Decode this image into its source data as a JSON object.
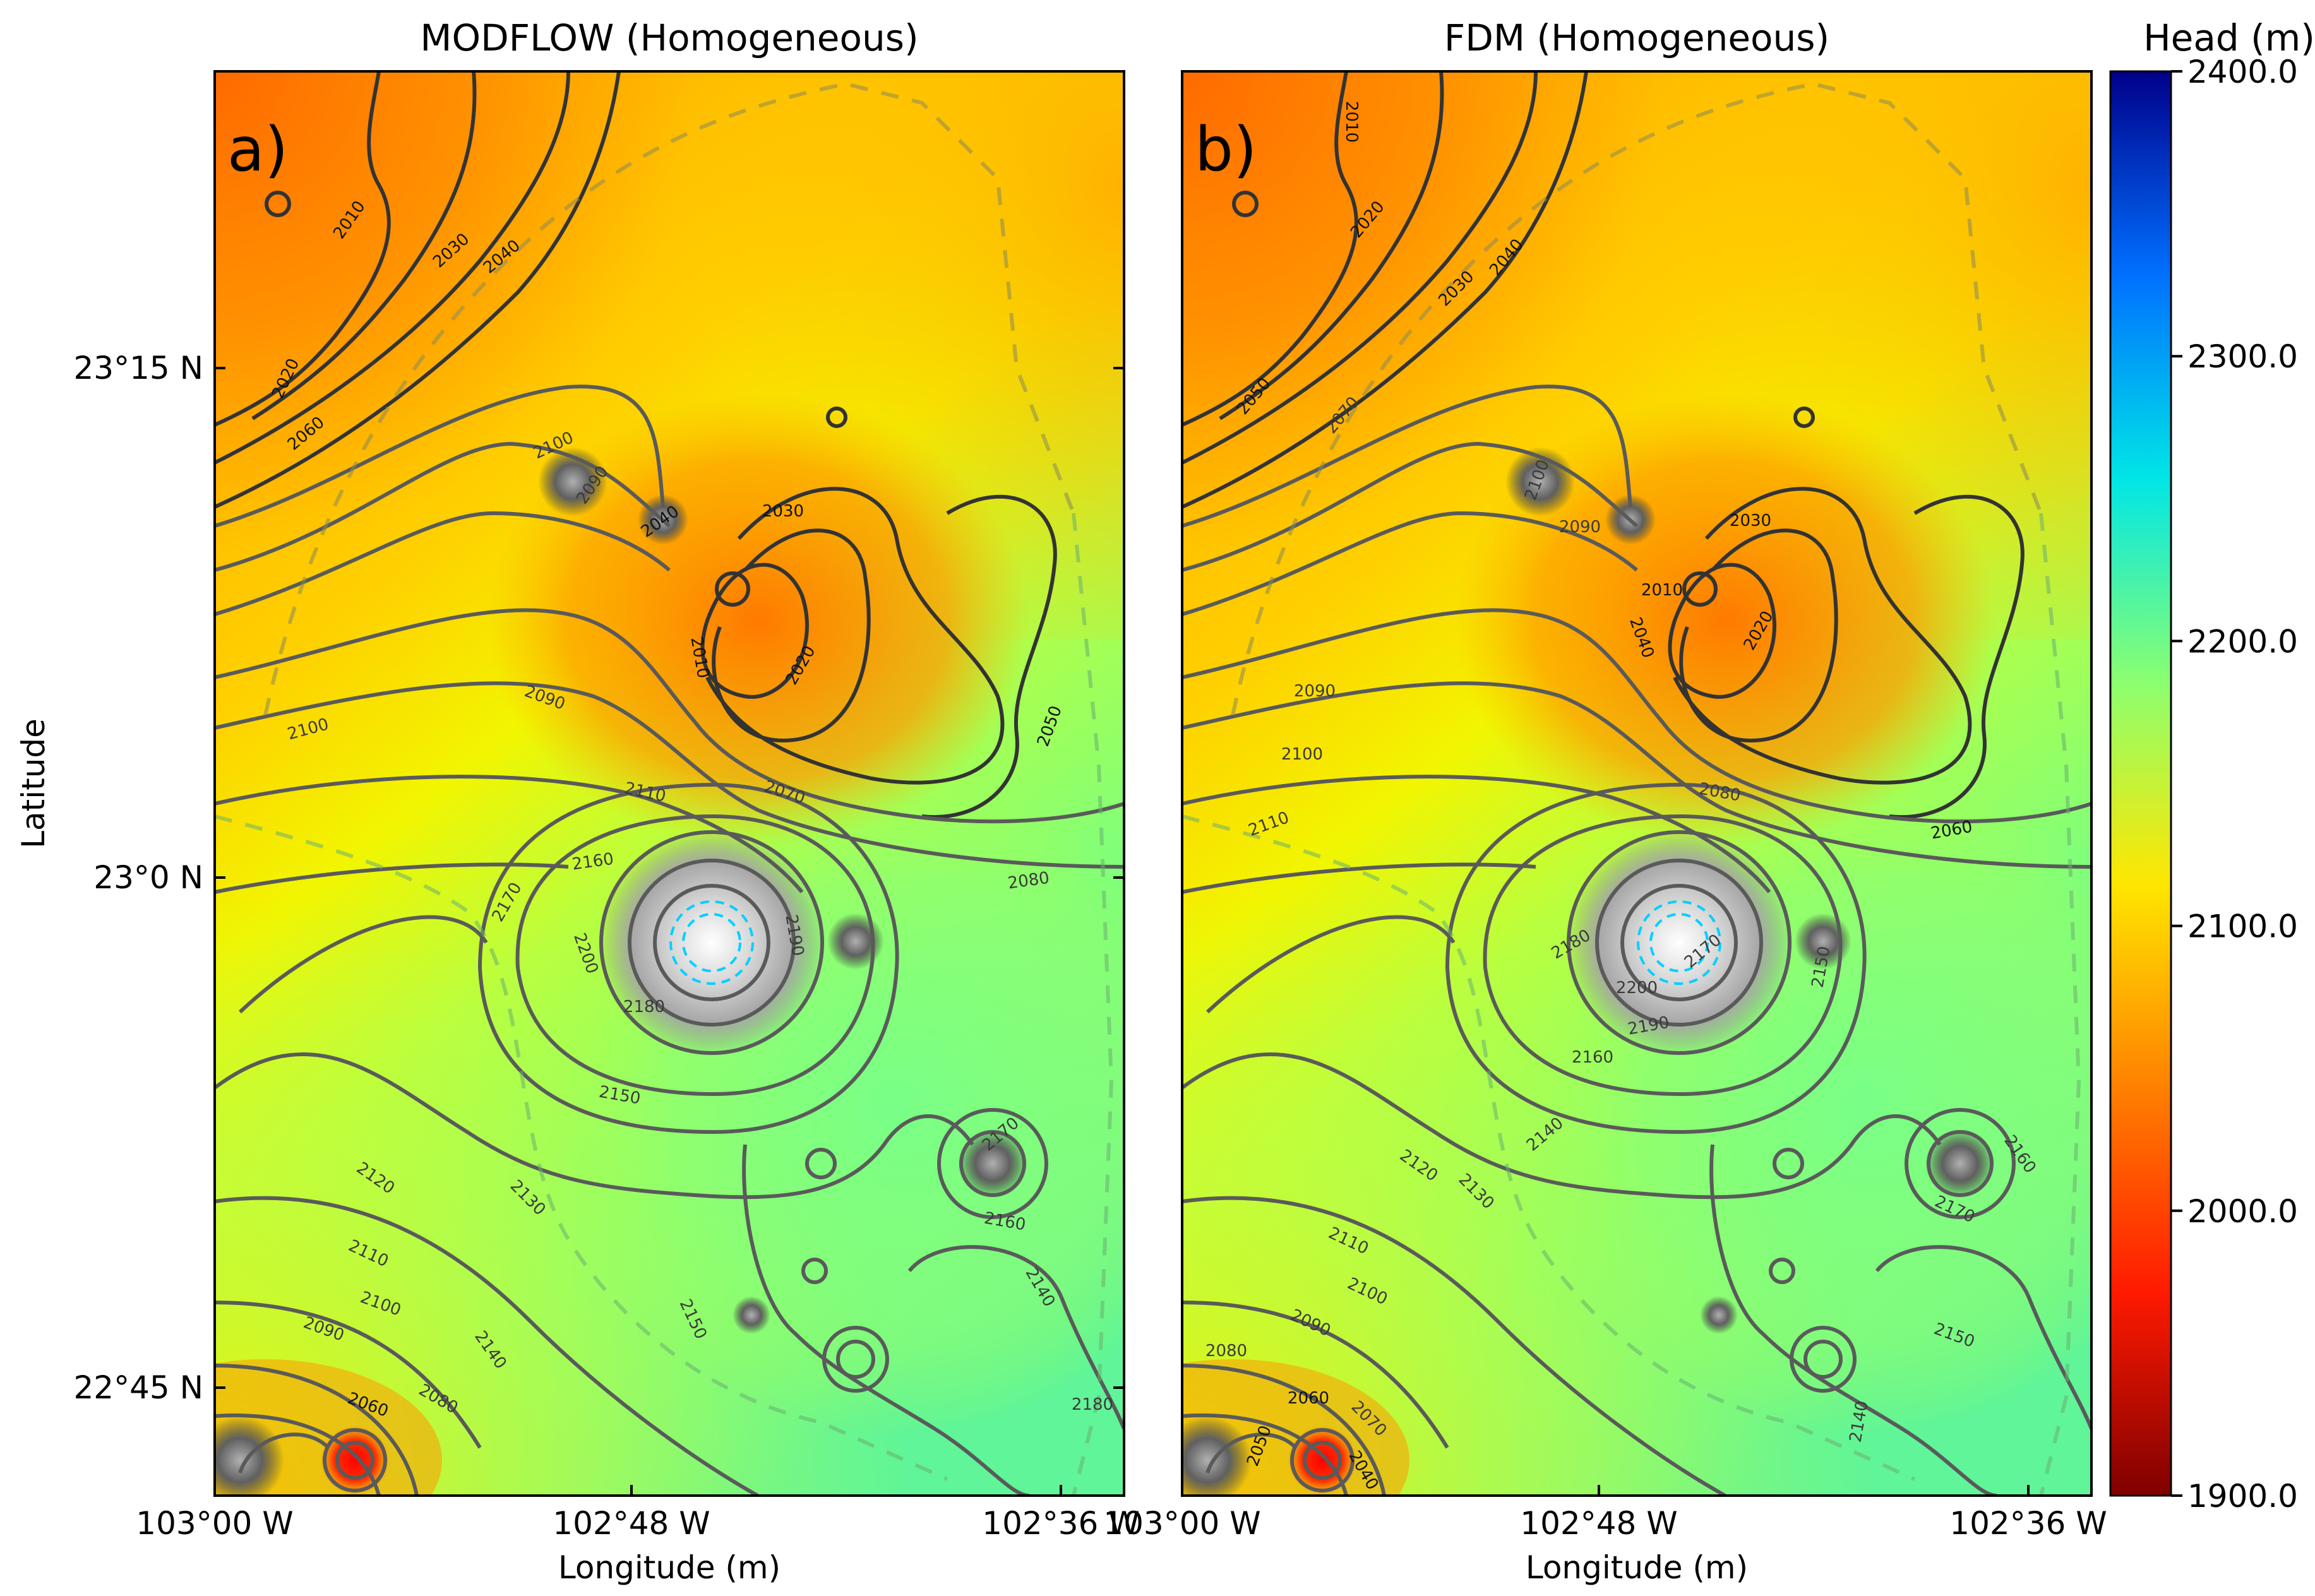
{
  "figure": {
    "colorbar_title": "Head (m)",
    "colorbar_range": [
      1900,
      2400
    ],
    "colorbar_ticks": [
      "1900.0",
      "2000.0",
      "2100.0",
      "2200.0",
      "2300.0",
      "2400.0"
    ],
    "colormap_stops": [
      "#7f0000",
      "#ff1a00",
      "#ff8000",
      "#ffe600",
      "#8cff70",
      "#00e6e6",
      "#0070ff",
      "#00008a"
    ]
  },
  "chart_data": [
    {
      "type": "heatmap",
      "title": "MODFLOW (Homogeneous)",
      "panel_label": "a)",
      "xlabel": "Longitude (m)",
      "ylabel": "Latitude",
      "x_ticks": [
        "103°00 W",
        "102°48 W",
        "102°36 W"
      ],
      "y_ticks": [
        "23°15 N",
        "23°0 N",
        "22°45 N"
      ],
      "contour_labels": [
        "2010",
        "2020",
        "2030",
        "2040",
        "2060",
        "2100",
        "2090",
        "2040",
        "2030",
        "2010",
        "2020",
        "2050",
        "2090",
        "2100",
        "2070",
        "2110",
        "2080",
        "2160",
        "2170",
        "2200",
        "2190",
        "2180",
        "2150",
        "2120",
        "2130",
        "2110",
        "2100",
        "2090",
        "2060",
        "2080",
        "2140",
        "2150",
        "2180",
        "2170",
        "2160",
        "2140"
      ],
      "colorbar_value_min": 1900,
      "colorbar_value_max": 2400
    },
    {
      "type": "heatmap",
      "title": "FDM (Homogeneous)",
      "panel_label": "b)",
      "xlabel": "Longitude (m)",
      "x_ticks": [
        "103°00 W",
        "102°48 W",
        "102°36 W"
      ],
      "contour_labels": [
        "2010",
        "2020",
        "2040",
        "2030",
        "2050",
        "2070",
        "2100",
        "2090",
        "2030",
        "2010",
        "2040",
        "2020",
        "2090",
        "2100",
        "2110",
        "2080",
        "2060",
        "2180",
        "2170",
        "2150",
        "2200",
        "2190",
        "2160",
        "2140",
        "2120",
        "2130",
        "2110",
        "2100",
        "2090",
        "2080",
        "2060",
        "2070",
        "2050",
        "2040",
        "2170",
        "2160",
        "2150",
        "2140"
      ],
      "colorbar_value_min": 1900,
      "colorbar_value_max": 2400
    }
  ]
}
